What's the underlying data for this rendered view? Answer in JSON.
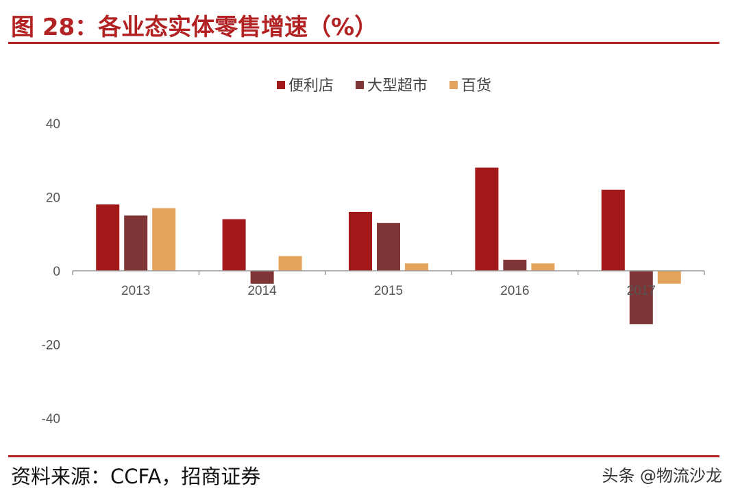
{
  "figure_title": "图 28：各业态实体零售增速（%）",
  "source": "资料来源：CCFA，招商证券",
  "watermark": "头条 @物流沙龙",
  "colors": {
    "accent": "#b22222",
    "series": [
      "#a31818",
      "#7f3535",
      "#e3a35b"
    ]
  },
  "chart_data": {
    "type": "bar",
    "title": "",
    "xlabel": "",
    "ylabel": "",
    "categories": [
      "2013",
      "2014",
      "2015",
      "2016",
      "2017"
    ],
    "series": [
      {
        "name": "便利店",
        "values": [
          18,
          14,
          16,
          28,
          22
        ]
      },
      {
        "name": "大型超市",
        "values": [
          15,
          -3.5,
          13,
          3,
          -14.5
        ]
      },
      {
        "name": "百货",
        "values": [
          17,
          4,
          2,
          2,
          -3.5
        ]
      }
    ],
    "ylim": [
      -40,
      40
    ],
    "yticks": [
      -40,
      -20,
      0,
      20,
      40
    ],
    "grid": false,
    "legend_position": "top-center"
  }
}
